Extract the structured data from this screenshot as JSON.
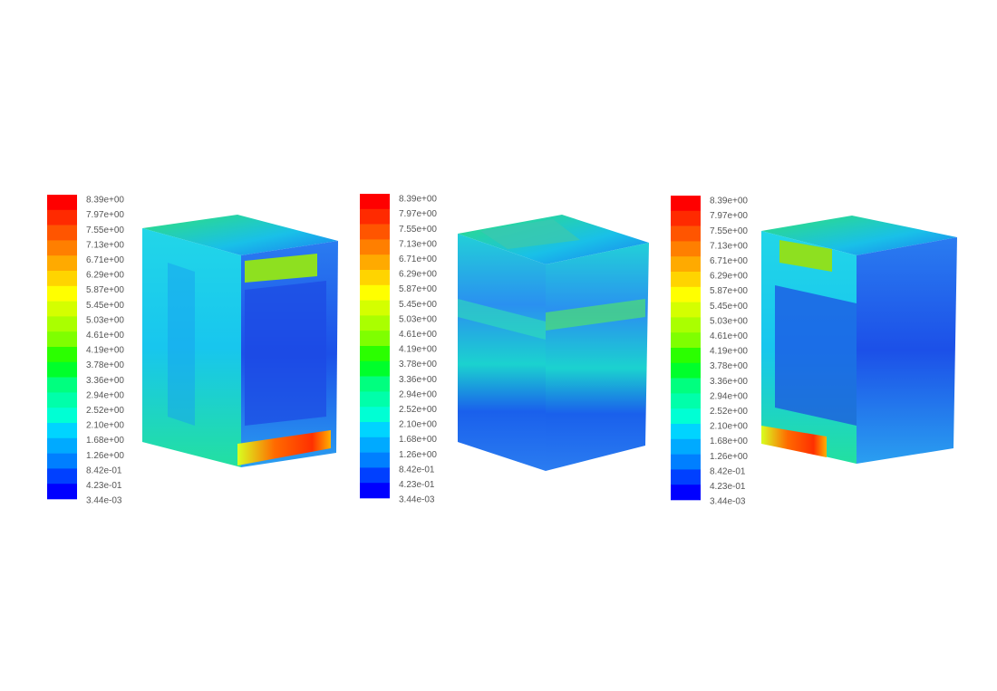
{
  "colormap": [
    "#ff0000",
    "#ff2a00",
    "#ff5500",
    "#ff7f00",
    "#ffaa00",
    "#ffd400",
    "#ffff00",
    "#d4ff00",
    "#aaff00",
    "#7fff00",
    "#2bff00",
    "#00ff2b",
    "#00ff7f",
    "#00ffaa",
    "#00ffd4",
    "#00d4ff",
    "#00aaff",
    "#007fff",
    "#0040ff",
    "#0000ff"
  ],
  "panels": [
    {
      "legend": {
        "labels": [
          "8.39e+00",
          "7.97e+00",
          "7.55e+00",
          "7.13e+00",
          "6.71e+00",
          "6.29e+00",
          "5.87e+00",
          "5.45e+00",
          "5.03e+00",
          "4.61e+00",
          "4.19e+00",
          "3.78e+00",
          "3.36e+00",
          "2.94e+00",
          "2.52e+00",
          "2.10e+00",
          "1.68e+00",
          "1.26e+00",
          "8.42e-01",
          "4.23e-01",
          "3.44e-03"
        ]
      }
    },
    {
      "legend": {
        "labels": [
          "8.39e+00",
          "7.97e+00",
          "7.55e+00",
          "7.13e+00",
          "6.71e+00",
          "6.29e+00",
          "5.87e+00",
          "5.45e+00",
          "5.03e+00",
          "4.61e+00",
          "4.19e+00",
          "3.78e+00",
          "3.36e+00",
          "2.94e+00",
          "2.52e+00",
          "2.10e+00",
          "1.68e+00",
          "1.26e+00",
          "8.42e-01",
          "4.23e-01",
          "3.44e-03"
        ]
      }
    },
    {
      "legend": {
        "labels": [
          "8.39e+00",
          "7.97e+00",
          "7.55e+00",
          "7.13e+00",
          "6.71e+00",
          "6.29e+00",
          "5.87e+00",
          "5.45e+00",
          "5.03e+00",
          "4.61e+00",
          "4.19e+00",
          "3.78e+00",
          "3.36e+00",
          "2.94e+00",
          "2.52e+00",
          "2.10e+00",
          "1.68e+00",
          "1.26e+00",
          "8.42e-01",
          "4.23e-01",
          "3.44e-03"
        ]
      }
    }
  ]
}
